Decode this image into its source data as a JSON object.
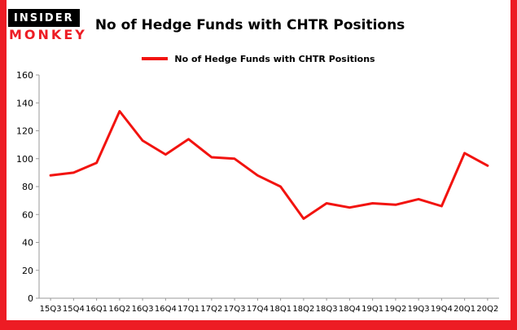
{
  "brand": {
    "top": "INSIDER",
    "bottom": "MONKEY"
  },
  "title": "No of Hedge Funds with CHTR Positions",
  "legend": {
    "label": "No of Hedge Funds with CHTR Positions"
  },
  "colors": {
    "accent": "#ed1c24",
    "line": "#f2130f",
    "axis": "#999999",
    "text": "#000000"
  },
  "chart_data": {
    "type": "line",
    "title": "No of Hedge Funds with CHTR Positions",
    "categories": [
      "15Q3",
      "15Q4",
      "16Q1",
      "16Q2",
      "16Q3",
      "16Q4",
      "17Q1",
      "17Q2",
      "17Q3",
      "17Q4",
      "18Q1",
      "18Q2",
      "18Q3",
      "18Q4",
      "19Q1",
      "19Q2",
      "19Q3",
      "19Q4",
      "20Q1",
      "20Q2"
    ],
    "values": [
      88,
      90,
      97,
      134,
      113,
      103,
      114,
      101,
      100,
      88,
      80,
      57,
      68,
      65,
      68,
      67,
      71,
      66,
      104,
      95
    ],
    "xlabel": "",
    "ylabel": "",
    "ylim": [
      0,
      160
    ],
    "yticks": [
      0,
      20,
      40,
      60,
      80,
      100,
      120,
      140,
      160
    ],
    "grid": false,
    "legend_position": "top"
  }
}
